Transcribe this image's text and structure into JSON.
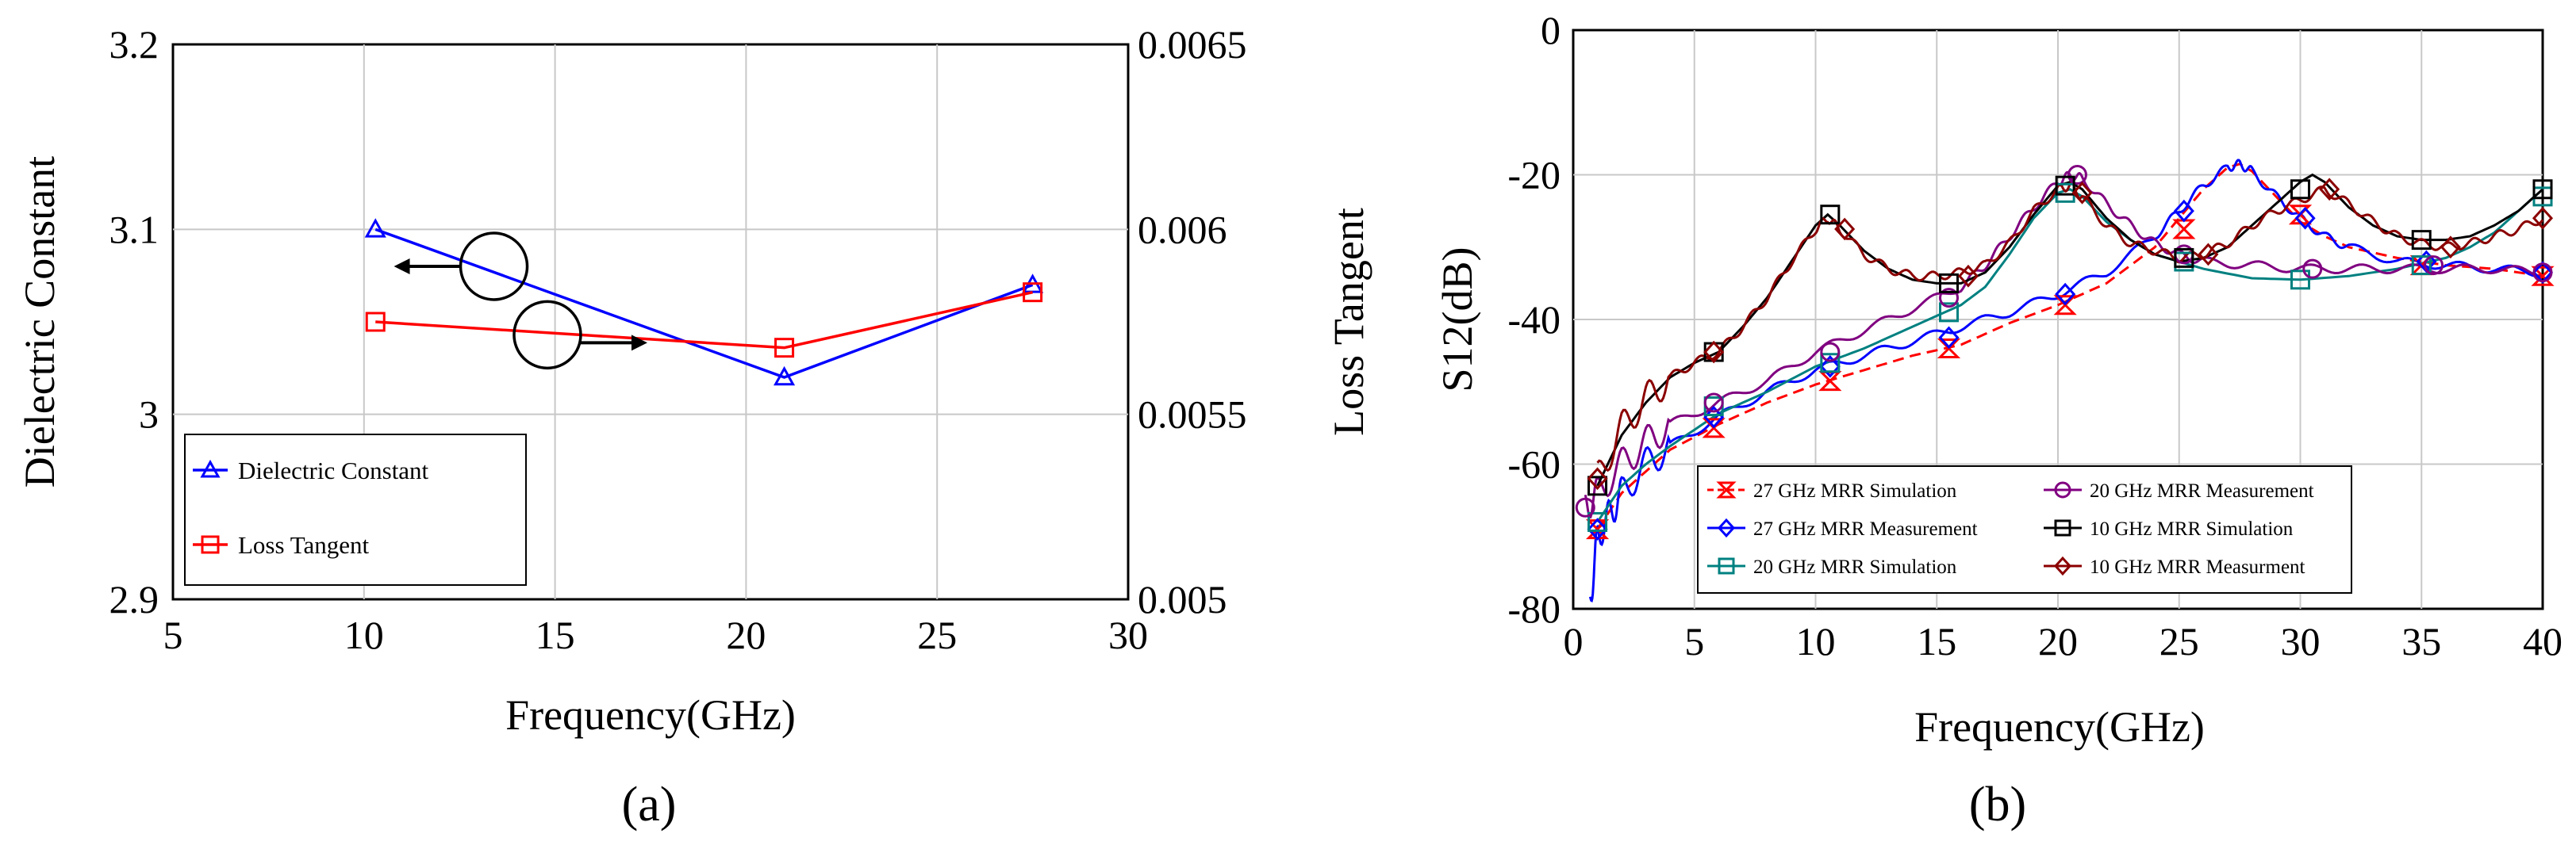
{
  "chart_data": [
    {
      "type": "line",
      "panel_label": "(a)",
      "xlabel": "Frequency(GHz)",
      "ylabel": "Dielectric Constant",
      "y2label": "Loss Tangent",
      "xlim": [
        5,
        30
      ],
      "ylim": [
        2.9,
        3.2
      ],
      "y2lim": [
        0.005,
        0.0065
      ],
      "x_ticks": [
        "5",
        "10",
        "15",
        "20",
        "25",
        "30"
      ],
      "y_ticks": [
        "2.9",
        "3",
        "3.1",
        "3.2"
      ],
      "y2_ticks": [
        "0.005",
        "0.0055",
        "0.006",
        "0.0065"
      ],
      "grid": true,
      "legend_position": "bottom-left",
      "series": [
        {
          "name": "Dielectric Constant",
          "color": "#0000ff",
          "marker": "triangle",
          "axis": "left",
          "x": [
            10.3,
            21.0,
            27.5
          ],
          "y": [
            3.1,
            3.02,
            3.07
          ]
        },
        {
          "name": "Loss Tangent",
          "color": "#ff0000",
          "marker": "square",
          "axis": "right",
          "x": [
            10.3,
            21.0,
            27.5
          ],
          "y": [
            0.00575,
            0.00568,
            0.00583
          ]
        }
      ]
    },
    {
      "type": "line",
      "panel_label": "(b)",
      "xlabel": "Frequency(GHz)",
      "ylabel": "S12(dB)",
      "xlim": [
        0,
        40
      ],
      "ylim": [
        -80,
        0
      ],
      "x_ticks": [
        "0",
        "5",
        "10",
        "15",
        "20",
        "25",
        "30",
        "35",
        "40"
      ],
      "y_ticks": [
        "0",
        "-20",
        "-40",
        "-60",
        "-80"
      ],
      "grid": true,
      "legend_position": "bottom-left",
      "series": [
        {
          "name": "27 GHz MRR Simulation",
          "color": "#ff0000",
          "marker": "hourglass",
          "dashed": true,
          "x": [
            1,
            2,
            3,
            4,
            6,
            8,
            10,
            12,
            14,
            16,
            18,
            20,
            22,
            24,
            25,
            26,
            27,
            27.5,
            28,
            29,
            30,
            31,
            32,
            34,
            36,
            38,
            40
          ],
          "y": [
            -69,
            -64,
            -61,
            -58,
            -54.5,
            -51.5,
            -49,
            -47,
            -45,
            -43.5,
            -40.5,
            -38,
            -35,
            -30,
            -26,
            -22,
            -19,
            -18.5,
            -19.5,
            -23,
            -26.5,
            -28.5,
            -30,
            -31.5,
            -32.5,
            -33,
            -34
          ]
        },
        {
          "name": "27 GHz MRR Measurement",
          "color": "#0000ff",
          "marker": "diamond",
          "x": [
            0.7,
            1,
            1.5,
            2,
            3,
            4,
            6,
            8,
            10,
            12,
            14,
            16,
            18,
            20,
            22,
            24,
            25,
            26,
            27,
            27.5,
            28,
            29,
            30,
            31,
            32,
            34,
            36,
            38,
            40
          ],
          "y": [
            -79,
            -70,
            -67,
            -64,
            -60,
            -57.5,
            -53.5,
            -50,
            -47,
            -45,
            -43,
            -41,
            -39,
            -36.5,
            -33.5,
            -28.5,
            -25,
            -21.5,
            -19,
            -18.5,
            -19.5,
            -23,
            -26,
            -28.5,
            -30,
            -32,
            -32.5,
            -33,
            -33.5
          ]
        },
        {
          "name": "20 GHz MRR Simulation",
          "color": "#008080",
          "marker": "square",
          "x": [
            1,
            2,
            3,
            4,
            6,
            8,
            10,
            12,
            14,
            16,
            17,
            18,
            19,
            20,
            20.5,
            21,
            22,
            23,
            24,
            25,
            26,
            28,
            30,
            32,
            34,
            36,
            37,
            38,
            39,
            40
          ],
          "y": [
            -68,
            -63,
            -60,
            -57.5,
            -53,
            -50,
            -46.5,
            -44,
            -41,
            -38,
            -35.5,
            -31,
            -26,
            -22.5,
            -22,
            -23,
            -26.5,
            -29,
            -31,
            -32,
            -33,
            -34.3,
            -34.5,
            -34,
            -33,
            -31.5,
            -30,
            -28,
            -25,
            -22
          ]
        },
        {
          "name": "20 GHz MRR Measurement",
          "color": "#800080",
          "marker": "circle",
          "x": [
            0.5,
            1,
            2,
            3,
            4,
            6,
            8,
            10,
            12,
            14,
            16,
            17,
            18,
            19,
            20,
            20.5,
            21,
            22,
            23,
            24,
            25,
            26,
            28,
            30,
            32,
            34,
            36,
            38,
            40
          ],
          "y": [
            -66,
            -64,
            -60,
            -57,
            -54.5,
            -51.5,
            -48.5,
            -44.5,
            -41.5,
            -38.5,
            -35.5,
            -32.5,
            -28.5,
            -24.5,
            -21,
            -20,
            -20.5,
            -24,
            -27,
            -29.5,
            -31,
            -32,
            -32.5,
            -33,
            -33,
            -33,
            -33,
            -33,
            -33.5
          ]
        },
        {
          "name": "10 GHz MRR Simulation",
          "color": "#000000",
          "marker": "square",
          "x": [
            1,
            2,
            3,
            4,
            5,
            6,
            7,
            8,
            9,
            10,
            10.5,
            11,
            12,
            13,
            14,
            15,
            16,
            17,
            18,
            19,
            20,
            20.5,
            21,
            22,
            23,
            24,
            25,
            26,
            27,
            28,
            29,
            30,
            30.5,
            31,
            32,
            33,
            34,
            35,
            36,
            37,
            38,
            39,
            40
          ],
          "y": [
            -63,
            -56,
            -51.5,
            -48,
            -46,
            -44.5,
            -41,
            -37,
            -32,
            -27,
            -25.5,
            -27,
            -30.5,
            -33,
            -34.5,
            -35,
            -35,
            -33.5,
            -30,
            -25.5,
            -21.5,
            -21,
            -22,
            -26,
            -29,
            -31,
            -32,
            -31.5,
            -30,
            -27,
            -24,
            -21,
            -20,
            -21,
            -24.5,
            -27,
            -28.5,
            -29,
            -29,
            -28.5,
            -27,
            -25,
            -22
          ]
        },
        {
          "name": "10 GHz MRR Measurment",
          "color": "#8b0000",
          "marker": "diamond",
          "x": [
            1,
            2,
            3,
            4,
            5,
            6,
            7,
            8,
            9,
            10,
            10.5,
            11,
            12,
            13,
            14,
            15,
            16,
            17,
            18,
            19,
            20,
            20.5,
            21,
            22,
            23,
            24,
            25,
            26,
            27,
            28,
            29,
            30,
            31,
            32,
            33,
            34,
            35,
            36,
            37,
            38,
            39,
            40
          ],
          "y": [
            -62,
            -55,
            -51,
            -48,
            -46,
            -44.5,
            -41,
            -37,
            -32,
            -27.5,
            -26,
            -27.5,
            -31,
            -33,
            -34,
            -34,
            -33.5,
            -32.5,
            -29.5,
            -25,
            -22,
            -21.5,
            -23,
            -27,
            -29.5,
            -30.5,
            -31.5,
            -31,
            -29.5,
            -27,
            -25,
            -23.5,
            -22,
            -24,
            -26.5,
            -28.5,
            -29.5,
            -30,
            -29.5,
            -28.5,
            -27.5,
            -26
          ]
        }
      ],
      "markers": {
        "27 GHz MRR Simulation": [
          [
            1,
            -69
          ],
          [
            5.8,
            -55
          ],
          [
            10.6,
            -48.5
          ],
          [
            15.5,
            -44
          ],
          [
            20.3,
            -38
          ],
          [
            25.2,
            -27.5
          ],
          [
            30,
            -25.5
          ],
          [
            35,
            -32.5
          ],
          [
            40,
            -34
          ]
        ],
        "27 GHz MRR Measurement": [
          [
            1,
            -69
          ],
          [
            5.8,
            -53.5
          ],
          [
            10.6,
            -46.5
          ],
          [
            15.5,
            -42.5
          ],
          [
            20.3,
            -36.5
          ],
          [
            25.2,
            -25
          ],
          [
            30.2,
            -26
          ],
          [
            35.2,
            -32
          ],
          [
            40,
            -33.5
          ]
        ],
        "20 GHz MRR Simulation": [
          [
            1,
            -68
          ],
          [
            5.8,
            -52
          ],
          [
            10.6,
            -46
          ],
          [
            15.5,
            -39
          ],
          [
            20.3,
            -22.5
          ],
          [
            25.2,
            -32
          ],
          [
            30,
            -34.5
          ],
          [
            35,
            -32.5
          ],
          [
            40,
            -23
          ]
        ],
        "20 GHz MRR Measurement": [
          [
            0.5,
            -66
          ],
          [
            5.8,
            -51.5
          ],
          [
            10.6,
            -44.5
          ],
          [
            15.5,
            -37
          ],
          [
            20.8,
            -20
          ],
          [
            25.2,
            -31
          ],
          [
            30.5,
            -33
          ],
          [
            35.5,
            -32.5
          ],
          [
            40,
            -33.5
          ]
        ],
        "10 GHz MRR Simulation": [
          [
            1,
            -63
          ],
          [
            5.8,
            -44.5
          ],
          [
            10.6,
            -25.5
          ],
          [
            15.5,
            -35
          ],
          [
            20.3,
            -21.5
          ],
          [
            25.2,
            -31.5
          ],
          [
            30,
            -22
          ],
          [
            35,
            -29
          ],
          [
            40,
            -22
          ]
        ],
        "10 GHz MRR Measurment": [
          [
            1,
            -62
          ],
          [
            5.8,
            -44.5
          ],
          [
            11.2,
            -27.5
          ],
          [
            16.3,
            -34
          ],
          [
            21,
            -22.5
          ],
          [
            26.2,
            -31
          ],
          [
            31.2,
            -22
          ],
          [
            36.2,
            -30
          ],
          [
            40,
            -26
          ]
        ]
      }
    }
  ],
  "annotations": {
    "a_circle_left": {
      "axis": "left",
      "x": 13.4,
      "y": 3.08
    },
    "a_circle_right": {
      "axis": "left",
      "x": 14.8,
      "y": 3.043
    }
  }
}
